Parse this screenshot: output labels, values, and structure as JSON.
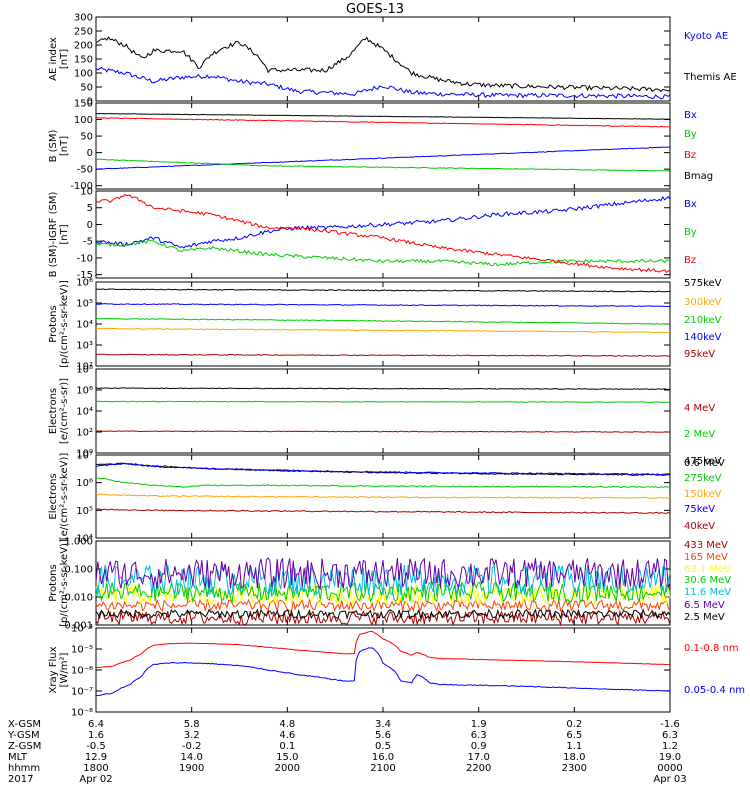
{
  "title": "GOES-13",
  "colors": {
    "black": "#000000",
    "blue": "#0000ff",
    "red": "#ff0000",
    "green": "#00cc00",
    "orange": "#ffa500",
    "darkred": "#aa0000",
    "yellow": "#ffff00",
    "cyan": "#00bbdd",
    "redorange": "#ff4400",
    "purple": "#6600aa"
  },
  "chart_data": [
    {
      "type": "line",
      "id": "ae",
      "ylabel": [
        "AE index",
        "[nT]"
      ],
      "scale": "linear",
      "ylim": [
        0,
        300
      ],
      "ticks": [
        0,
        50,
        100,
        150,
        200,
        250,
        300
      ],
      "tick_labels": [
        "0",
        "50",
        "100",
        "150",
        "200",
        "250",
        "300"
      ],
      "series": [
        {
          "name": "Kyoto AE",
          "color": "#0000ff",
          "noise": 8,
          "x": [
            0,
            0.05,
            0.1,
            0.15,
            0.2,
            0.25,
            0.3,
            0.35,
            0.4,
            0.45,
            0.5,
            0.55,
            0.6,
            0.7,
            0.8,
            0.9,
            1.0
          ],
          "y": [
            115,
            100,
            70,
            85,
            90,
            70,
            60,
            35,
            30,
            25,
            55,
            30,
            25,
            20,
            20,
            18,
            15
          ]
        },
        {
          "name": "Themis AE",
          "color": "#000000",
          "noise": 8,
          "x": [
            0,
            0.02,
            0.05,
            0.08,
            0.1,
            0.15,
            0.18,
            0.2,
            0.22,
            0.25,
            0.28,
            0.3,
            0.35,
            0.4,
            0.44,
            0.47,
            0.5,
            0.55,
            0.6,
            0.65,
            0.7,
            0.8,
            0.9,
            1.0
          ],
          "y": [
            205,
            225,
            200,
            150,
            180,
            180,
            120,
            165,
            190,
            210,
            165,
            110,
            110,
            110,
            160,
            225,
            185,
            100,
            75,
            60,
            55,
            50,
            45,
            40
          ]
        }
      ]
    },
    {
      "type": "line",
      "id": "bsm",
      "ylabel": [
        "B (SM)",
        "[nT]"
      ],
      "scale": "linear",
      "ylim": [
        -110,
        150
      ],
      "ticks": [
        -100,
        -50,
        0,
        50,
        100,
        150
      ],
      "tick_labels": [
        "-100",
        "-50",
        "0",
        "50",
        "100",
        "150"
      ],
      "series": [
        {
          "name": "Bx",
          "color": "#0000ff",
          "noise": 1,
          "x": [
            0,
            1.0
          ],
          "y": [
            -50,
            17
          ]
        },
        {
          "name": "By",
          "color": "#00cc00",
          "noise": 1,
          "x": [
            0,
            0.3,
            1.0
          ],
          "y": [
            -20,
            -40,
            -55
          ]
        },
        {
          "name": "Bz",
          "color": "#ff0000",
          "noise": 1,
          "x": [
            0,
            1.0
          ],
          "y": [
            105,
            78
          ]
        },
        {
          "name": "Bmag",
          "color": "#000000",
          "noise": 0.5,
          "x": [
            0,
            1.0
          ],
          "y": [
            118,
            101
          ]
        }
      ]
    },
    {
      "type": "line",
      "id": "bigrf",
      "ylabel": [
        "B (SM)-IGRF (SM)",
        "[nT]"
      ],
      "scale": "linear",
      "ylim": [
        -16,
        10
      ],
      "ticks": [
        -15,
        -10,
        -5,
        0,
        5,
        10
      ],
      "tick_labels": [
        "-15",
        "-10",
        "-5",
        "0",
        "5",
        "10"
      ],
      "series": [
        {
          "name": "Bx",
          "color": "#0000ff",
          "noise": 0.6,
          "x": [
            0,
            0.05,
            0.1,
            0.15,
            0.2,
            0.25,
            0.3,
            0.35,
            0.4,
            0.5,
            0.6,
            0.7,
            0.8,
            0.9,
            1.0
          ],
          "y": [
            -5,
            -6,
            -4,
            -7,
            -5,
            -4,
            -2,
            -1,
            -1,
            0,
            1,
            3,
            4,
            6,
            8
          ]
        },
        {
          "name": "By",
          "color": "#00cc00",
          "noise": 0.5,
          "x": [
            0,
            0.05,
            0.1,
            0.15,
            0.2,
            0.3,
            0.4,
            0.5,
            0.6,
            0.7,
            0.8,
            0.9,
            1.0
          ],
          "y": [
            -6,
            -6,
            -5,
            -8,
            -7,
            -9,
            -10,
            -11,
            -11,
            -12,
            -11,
            -11,
            -11
          ]
        },
        {
          "name": "Bz",
          "color": "#ff0000",
          "noise": 0.5,
          "x": [
            0,
            0.03,
            0.05,
            0.08,
            0.1,
            0.15,
            0.2,
            0.25,
            0.3,
            0.35,
            0.4,
            0.5,
            0.6,
            0.7,
            0.8,
            0.9,
            1.0
          ],
          "y": [
            7,
            7,
            9,
            7,
            5,
            4,
            3,
            1,
            -1,
            -1,
            -2,
            -4,
            -7,
            -9,
            -11,
            -13,
            -14
          ]
        }
      ]
    },
    {
      "type": "line",
      "id": "protons1",
      "ylabel": [
        "Protons",
        "[p/(cm²-s-sr-keV)]"
      ],
      "scale": "log",
      "ylim": [
        100,
        1000000
      ],
      "ticks": [
        100,
        1000,
        10000,
        100000,
        1000000
      ],
      "tick_labels": [
        "10²",
        "10³",
        "10⁴",
        "10⁵",
        "10⁶"
      ],
      "series": [
        {
          "name": "575keV",
          "color": "#000000",
          "noise": 0.02,
          "x": [
            0,
            1.0
          ],
          "y": [
            450000,
            350000
          ]
        },
        {
          "name": "300keV",
          "color": "#ffa500",
          "noise": 0.02,
          "x": [
            0,
            1.0
          ],
          "y": [
            6000,
            4000
          ]
        },
        {
          "name": "210keV",
          "color": "#00cc00",
          "noise": 0.02,
          "x": [
            0,
            1.0
          ],
          "y": [
            18000,
            10000
          ]
        },
        {
          "name": "140keV",
          "color": "#0000ff",
          "noise": 0.02,
          "x": [
            0,
            1.0
          ],
          "y": [
            90000,
            70000
          ]
        },
        {
          "name": "95keV",
          "color": "#aa0000",
          "noise": 0.02,
          "x": [
            0,
            1.0
          ],
          "y": [
            350,
            300
          ]
        }
      ]
    },
    {
      "type": "line",
      "id": "electrons1",
      "ylabel": [
        "Electrons",
        "[e/(cm²-s-sr)]"
      ],
      "scale": "log",
      "ylim": [
        1,
        100000000
      ],
      "ticks": [
        1,
        100,
        10000,
        1000000,
        100000000
      ],
      "tick_labels": [
        "10⁰",
        "10²",
        "10⁴",
        "10⁶",
        "10⁸"
      ],
      "series": [
        {
          "name": "4 MeV",
          "color": "#aa0000",
          "noise": 0.03,
          "x": [
            0,
            1.0
          ],
          "y": [
            120,
            100
          ]
        },
        {
          "name": "2 MeV",
          "color": "#00cc00",
          "noise": 0.03,
          "x": [
            0,
            1.0
          ],
          "y": [
            80000,
            70000
          ]
        },
        {
          "name": "0.6 MeV",
          "color": "#000000",
          "noise": 0.03,
          "x": [
            0,
            1.0
          ],
          "y": [
            1500000,
            1200000
          ]
        }
      ]
    },
    {
      "type": "line",
      "id": "electrons2",
      "ylabel": [
        "Electrons",
        "[e/(cm²-s-sr-keV)]"
      ],
      "scale": "log",
      "ylim": [
        10000,
        10000000
      ],
      "ticks": [
        10000,
        100000,
        1000000,
        10000000
      ],
      "tick_labels": [
        "10⁴",
        "10⁵",
        "10⁶",
        "10⁷"
      ],
      "series": [
        {
          "name": "475keV",
          "color": "#000000",
          "noise": 0.02,
          "x": [
            0,
            0.05,
            0.1,
            0.2,
            0.3,
            0.4,
            0.5,
            0.6,
            0.7,
            0.8,
            1.0
          ],
          "y": [
            4500000,
            5000000,
            4000000,
            3200000,
            2800000,
            2500000,
            2300000,
            2200000,
            2100000,
            2000000,
            1900000
          ]
        },
        {
          "name": "275keV",
          "color": "#00cc00",
          "noise": 0.02,
          "x": [
            0,
            0.05,
            0.1,
            0.15,
            0.2,
            0.3,
            0.5,
            0.7,
            1.0
          ],
          "y": [
            1500000,
            1000000,
            800000,
            700000,
            800000,
            800000,
            750000,
            720000,
            700000
          ]
        },
        {
          "name": "150keV",
          "color": "#ffa500",
          "noise": 0.02,
          "x": [
            0,
            0.1,
            0.3,
            0.5,
            0.7,
            1.0
          ],
          "y": [
            380000,
            330000,
            310000,
            300000,
            290000,
            280000
          ]
        },
        {
          "name": "75keV",
          "color": "#0000ff",
          "noise": 0.02,
          "x": [
            0,
            0.05,
            0.1,
            0.2,
            0.4,
            0.6,
            1.0
          ],
          "y": [
            4000000,
            4800000,
            3800000,
            3200000,
            2600000,
            2300000,
            2000000
          ]
        },
        {
          "name": "40keV",
          "color": "#aa0000",
          "noise": 0.02,
          "x": [
            0,
            0.1,
            0.3,
            0.5,
            0.7,
            1.0
          ],
          "y": [
            110000,
            100000,
            95000,
            90000,
            85000,
            80000
          ]
        }
      ]
    },
    {
      "type": "line",
      "id": "protons2",
      "ylabel": [
        "Protons",
        "[p/(cm²-s-sr-keV)]"
      ],
      "scale": "log",
      "ylim": [
        0.001,
        1.0
      ],
      "ticks": [
        0.001,
        0.01,
        0.1,
        1.0
      ],
      "tick_labels": [
        "0.001",
        "0.010",
        "0.100",
        "1.000"
      ],
      "series": [
        {
          "name": "433 MeV",
          "color": "#aa0000",
          "noise": 0.25,
          "x": [
            0,
            1.0
          ],
          "y": [
            0.0018,
            0.0018
          ]
        },
        {
          "name": "165 MeV",
          "color": "#ff4400",
          "noise": 0.2,
          "x": [
            0,
            1.0
          ],
          "y": [
            0.005,
            0.005
          ]
        },
        {
          "name": "63.1 MeV",
          "color": "#ffff00",
          "noise": 0.35,
          "x": [
            0,
            1.0
          ],
          "y": [
            0.012,
            0.012
          ]
        },
        {
          "name": "30.6 MeV",
          "color": "#00cc00",
          "noise": 0.35,
          "x": [
            0,
            1.0
          ],
          "y": [
            0.015,
            0.015
          ]
        },
        {
          "name": "11.6 MeV",
          "color": "#00bbdd",
          "noise": 0.55,
          "x": [
            0,
            1.0
          ],
          "y": [
            0.04,
            0.04
          ]
        },
        {
          "name": "6.5 MeV",
          "color": "#6600aa",
          "noise": 0.55,
          "x": [
            0,
            1.0
          ],
          "y": [
            0.07,
            0.07
          ]
        },
        {
          "name": "2.5 MeV",
          "color": "#000000",
          "noise": 0.15,
          "x": [
            0,
            1.0
          ],
          "y": [
            0.0025,
            0.0025
          ]
        }
      ]
    },
    {
      "type": "line",
      "id": "xray",
      "ylabel": [
        "Xray Flux",
        "[W/m²]"
      ],
      "scale": "log",
      "ylim": [
        1e-08,
        0.0001
      ],
      "ticks": [
        1e-08,
        1e-07,
        1e-06,
        1e-05,
        0.0001
      ],
      "tick_labels": [
        "10⁻⁸",
        "10⁻⁷",
        "10⁻⁶",
        "10⁻⁵",
        "10⁻⁴"
      ],
      "series": [
        {
          "name": "0.1-0.8 nm",
          "color": "#ff0000",
          "noise": 0.01,
          "x": [
            0,
            0.03,
            0.06,
            0.08,
            0.1,
            0.13,
            0.16,
            0.2,
            0.25,
            0.3,
            0.35,
            0.4,
            0.43,
            0.45,
            0.46,
            0.48,
            0.5,
            0.53,
            0.55,
            0.56,
            0.58,
            0.6,
            0.7,
            0.8,
            0.9,
            1.0
          ],
          "y": [
            1.3e-06,
            1.5e-06,
            3e-06,
            6e-06,
            1.5e-05,
            1.8e-05,
            1.9e-05,
            1.8e-05,
            1.6e-05,
            1.2e-05,
            9e-06,
            7e-06,
            6e-06,
            6e-06,
            5e-05,
            7e-05,
            3e-05,
            8e-06,
            5e-06,
            7e-06,
            4e-06,
            3.5e-06,
            3e-06,
            2.6e-06,
            2.2e-06,
            1.8e-06
          ]
        },
        {
          "name": "0.05-0.4 nm",
          "color": "#0000ff",
          "noise": 0.02,
          "x": [
            0,
            0.03,
            0.06,
            0.08,
            0.1,
            0.13,
            0.16,
            0.2,
            0.25,
            0.3,
            0.35,
            0.4,
            0.43,
            0.45,
            0.46,
            0.48,
            0.5,
            0.53,
            0.55,
            0.56,
            0.58,
            0.6,
            0.7,
            0.8,
            0.9,
            1.0
          ],
          "y": [
            6e-08,
            8e-08,
            2e-07,
            5e-07,
            1.8e-06,
            2.2e-06,
            2.2e-06,
            2e-06,
            1.6e-06,
            1e-06,
            6e-07,
            4e-07,
            3e-07,
            3e-07,
            8e-06,
            1.2e-05,
            2e-06,
            3e-07,
            2.5e-07,
            6e-07,
            2.5e-07,
            2e-07,
            1.8e-07,
            1.5e-07,
            1.2e-07,
            1e-07
          ]
        }
      ]
    }
  ],
  "ephemeris": {
    "labels": [
      "X-GSM",
      "Y-GSM",
      "Z-GSM",
      "MLT",
      "hhmm",
      "2017"
    ],
    "columns": [
      {
        "x": 0.0,
        "values": [
          "6.4",
          "1.6",
          "-0.5",
          "12.9",
          "1800",
          "Apr 02"
        ]
      },
      {
        "x": 0.1667,
        "values": [
          "5.8",
          "3.2",
          "-0.2",
          "14.0",
          "1900",
          ""
        ]
      },
      {
        "x": 0.3333,
        "values": [
          "4.8",
          "4.6",
          "0.1",
          "15.0",
          "2000",
          ""
        ]
      },
      {
        "x": 0.5,
        "values": [
          "3.4",
          "5.6",
          "0.5",
          "16.0",
          "2100",
          ""
        ]
      },
      {
        "x": 0.6667,
        "values": [
          "1.9",
          "6.3",
          "0.9",
          "17.0",
          "2200",
          ""
        ]
      },
      {
        "x": 0.8333,
        "values": [
          "0.2",
          "6.5",
          "1.1",
          "18.0",
          "2300",
          ""
        ]
      },
      {
        "x": 1.0,
        "values": [
          "-1.6",
          "6.3",
          "1.2",
          "19.0",
          "0000",
          "Apr 03"
        ]
      }
    ]
  }
}
